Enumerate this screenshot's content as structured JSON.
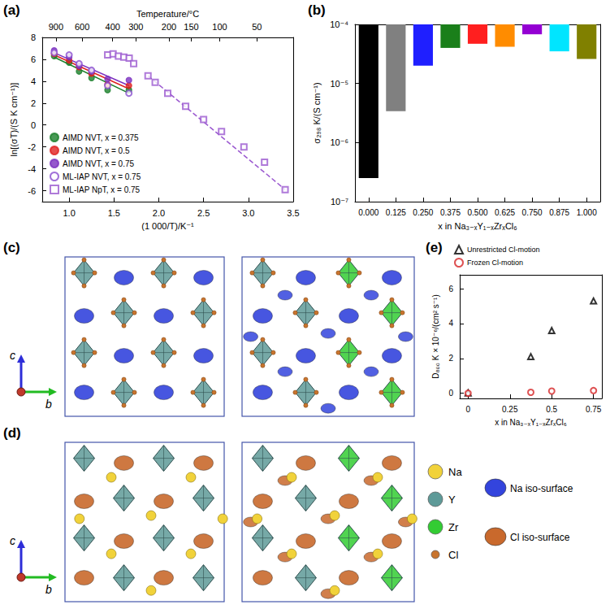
{
  "chart_data": [
    {
      "panel_label": "(a)",
      "type": "scatter",
      "x_label": "(1 000/T)/K⁻¹",
      "y_label": "ln[(σT)/(S K cm⁻¹)]",
      "x2_label": "Temperature/°C",
      "xlim": [
        0.7,
        3.5
      ],
      "xticks": [
        {
          "value": 1,
          "label": "1.0"
        },
        1.5,
        {
          "value": 2,
          "label": "2.0"
        },
        2.5,
        {
          "value": 3,
          "label": "3.0"
        },
        3.5
      ],
      "x2lim": [
        0.7,
        3.5
      ],
      "x2ticks": [
        {
          "value": 0.8524,
          "label": "900"
        },
        {
          "value": 1.1453,
          "label": "600"
        },
        {
          "value": 1.4856,
          "label": "400"
        },
        {
          "value": 1.7448,
          "label": "300"
        },
        {
          "value": 2.1135,
          "label": "200"
        },
        {
          "value": 2.3632,
          "label": "150"
        },
        {
          "value": 2.6799,
          "label": "100"
        },
        {
          "value": 3.0945,
          "label": "50"
        }
      ],
      "ylim": [
        -7,
        8
      ],
      "yticks": [
        -6,
        -4,
        -2,
        0,
        2,
        4,
        6,
        8
      ],
      "grid": false,
      "legend": "lower left",
      "series": [
        {
          "name": "AIMD NVT, x = 0.375",
          "color": "#1a7f2a",
          "marker": "circle",
          "x": [
            0.833,
            1.0,
            1.111,
            1.25,
            1.429,
            1.667
          ],
          "values": [
            6.3,
            5.7,
            4.9,
            4.3,
            3.2,
            3.2
          ],
          "fit": {
            "x": [
              0.833,
              1.667
            ],
            "values": [
              6.2,
              2.9
            ],
            "line_style": "solid"
          }
        },
        {
          "name": "AIMD NVT, x = 0.5",
          "color": "#e02020",
          "marker": "circle",
          "x": [
            0.833,
            1.0,
            1.111,
            1.25,
            1.429,
            1.667
          ],
          "values": [
            6.5,
            5.9,
            5.3,
            4.7,
            3.7,
            3.6
          ],
          "fit": {
            "x": [
              0.833,
              1.667
            ],
            "values": [
              6.4,
              3.3
            ],
            "line_style": "solid"
          }
        },
        {
          "name": "AIMD NVT, x = 0.75",
          "color": "#7b2fbf",
          "marker": "circle",
          "x": [
            0.833,
            1.0,
            1.111,
            1.25,
            1.429,
            1.667
          ],
          "values": [
            6.8,
            6.2,
            5.4,
            4.9,
            4.2,
            4.1
          ],
          "fit": {
            "x": [
              0.833,
              1.667
            ],
            "values": [
              6.6,
              3.6
            ],
            "line_style": "solid"
          }
        },
        {
          "name": "ML-IAP NVT, x = 0.75",
          "color": "#8a4fd0",
          "marker": "open_circle",
          "x": [
            0.833,
            1.0,
            1.111,
            1.25,
            1.429,
            1.667
          ],
          "values": [
            6.6,
            6.4,
            5.6,
            5.0,
            3.6,
            2.9
          ]
        },
        {
          "name": "ML-IAP NpT, x = 0.75",
          "color": "#9b59d0",
          "marker": "open_square",
          "x": [
            1.43,
            1.49,
            1.55,
            1.61,
            1.67,
            1.72,
            1.88,
            1.96,
            2.1,
            2.3,
            2.5,
            2.7,
            2.95,
            3.18,
            3.41
          ],
          "values": [
            6.4,
            6.5,
            6.3,
            6.2,
            6.1,
            5.6,
            4.5,
            3.9,
            2.9,
            1.7,
            0.5,
            -0.6,
            -2.0,
            -3.4,
            -5.9
          ],
          "fit": {
            "x": [
              1.88,
              3.41
            ],
            "values": [
              4.5,
              -5.9
            ],
            "line_style": "dashed"
          }
        }
      ]
    },
    {
      "panel_label": "(b)",
      "type": "bar",
      "x_label": "x in Na₃₋ₓY₁₋ₓZrₓCl₆",
      "y_label": "σ₂₉₈ K/(S cm⁻¹)",
      "categories": [
        "0.000",
        "0.125",
        "0.250",
        "0.375",
        "0.500",
        "0.625",
        "0.750",
        "0.875",
        "1.000"
      ],
      "values": [
        2.5e-07,
        3.4e-06,
        2e-05,
        4e-05,
        4.7e-05,
        4.2e-05,
        6.8e-05,
        3.5e-05,
        2.6e-05
      ],
      "colors": [
        "#000000",
        "#808080",
        "#1f1fff",
        "#1a7f1a",
        "#ff1f1f",
        "#ff8c00",
        "#9400d3",
        "#00e5ff",
        "#808000"
      ],
      "log": "y",
      "ylim": [
        1e-07,
        0.0001
      ],
      "yticks": [
        {
          "value": 1e-07,
          "label": "10⁻⁷"
        },
        {
          "value": 1e-06,
          "label": "10⁻⁶"
        },
        {
          "value": 1e-05,
          "label": "10⁻⁵"
        },
        {
          "value": 0.0001,
          "label": "10⁻⁴"
        }
      ],
      "grid": false
    },
    {
      "panel_label": "(e)",
      "type": "scatter",
      "x_label": "x in Na₃₋ₓY₁₋ₓZrₓCl₆",
      "y_label": "D₈₀₀ K × 10⁻⁶/(cm² s⁻¹)",
      "xlim": [
        -0.05,
        0.8
      ],
      "xticks": [
        0,
        0.25,
        0.5,
        0.75
      ],
      "ylim": [
        -0.3,
        6.8
      ],
      "yticks": [
        0,
        2,
        4,
        6
      ],
      "grid": false,
      "legend": "top",
      "series": [
        {
          "name": "Unrestricted Cl-motion",
          "color": "#000000",
          "marker": "open_triangle",
          "x": [
            0,
            0.375,
            0.5,
            0.75
          ],
          "values": [
            0.02,
            2.1,
            3.6,
            5.3
          ]
        },
        {
          "name": "Frozen Cl-motion",
          "color": "#d62728",
          "marker": "open_circle",
          "x": [
            0,
            0.375,
            0.5,
            0.75
          ],
          "values": [
            0.0,
            0.05,
            0.12,
            0.15
          ]
        }
      ]
    }
  ],
  "structure_panels": [
    {
      "panel_label": "(c)",
      "axes": [
        "c",
        "b"
      ],
      "iso_surface": "Na iso-surface",
      "atoms_shown": [
        "Y",
        "Zr",
        "Cl"
      ]
    },
    {
      "panel_label": "(d)",
      "axes": [
        "c",
        "b"
      ],
      "iso_surface": "Cl iso-surface",
      "atoms_shown": [
        "Na",
        "Y",
        "Zr"
      ]
    }
  ],
  "key": [
    {
      "label": "Na",
      "color": "#f1d23a",
      "shape": "sphere"
    },
    {
      "label": "Y",
      "color": "#5e9a98",
      "shape": "sphere"
    },
    {
      "label": "Zr",
      "color": "#33cc33",
      "shape": "sphere"
    },
    {
      "label": "Cl",
      "color": "#c8742e",
      "shape": "small_sphere"
    },
    {
      "label": "Na iso-surface",
      "color": "#3344dd",
      "shape": "blob"
    },
    {
      "label": "Cl iso-surface",
      "color": "#c9692c",
      "shape": "blob"
    }
  ]
}
